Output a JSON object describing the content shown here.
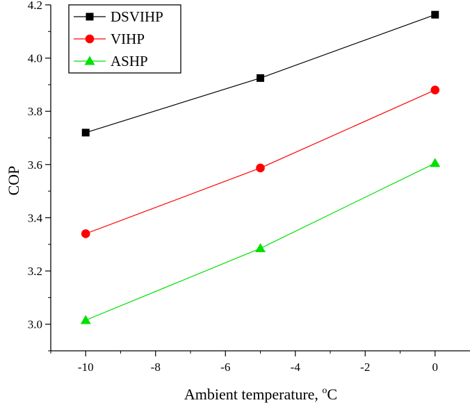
{
  "chart_data": {
    "type": "line",
    "title": "",
    "xlabel": "Ambient temperature, ",
    "xlabel_unit_sup": "o",
    "xlabel_unit": "C",
    "ylabel": "COP",
    "x": [
      -10,
      -5,
      0
    ],
    "xlim": [
      -11,
      1
    ],
    "ylim": [
      2.9,
      4.2
    ],
    "xticks": [
      -10,
      -8,
      -6,
      -4,
      -2,
      0
    ],
    "xtick_labels": [
      "-10",
      "-8",
      "-6",
      "-4",
      "-2",
      "0"
    ],
    "yticks": [
      3.0,
      3.2,
      3.4,
      3.6,
      3.8,
      4.0,
      4.2
    ],
    "ytick_labels": [
      "3.0",
      "3.2",
      "3.4",
      "3.6",
      "3.8",
      "4.0",
      "4.2"
    ],
    "grid": false,
    "legend_position": "top-left",
    "series": [
      {
        "name": "DSVIHP",
        "values": [
          3.72,
          3.925,
          4.163
        ],
        "color": "#000000",
        "marker": "square"
      },
      {
        "name": "VIHP",
        "values": [
          3.34,
          3.587,
          3.88
        ],
        "color": "#ff0000",
        "marker": "circle"
      },
      {
        "name": "ASHP",
        "values": [
          3.015,
          3.285,
          3.605
        ],
        "color": "#00e000",
        "marker": "triangle"
      }
    ]
  }
}
